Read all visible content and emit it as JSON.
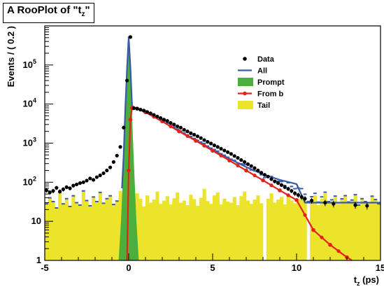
{
  "chart_data": {
    "type": "line",
    "title_prefix": "A RooPlot of \"t",
    "title_sub": "z",
    "title_suffix": "\"",
    "xlabel_main": "t",
    "xlabel_sub": "z",
    "xlabel_unit": " (ps)",
    "ylabel": "Events / ( 0.2 )",
    "xlim": [
      -5,
      15
    ],
    "ylim": [
      1,
      1000000
    ],
    "yscale": "log",
    "legend_position": "top-right",
    "x_ticks": [
      {
        "value": -5,
        "label": "-5"
      },
      {
        "value": 0,
        "label": "0"
      },
      {
        "value": 5,
        "label": "5"
      },
      {
        "value": 10,
        "label": "10"
      },
      {
        "value": 15,
        "label": "15"
      }
    ],
    "y_ticks": [
      {
        "value": 1,
        "base": "1",
        "exp": ""
      },
      {
        "value": 10,
        "base": "10",
        "exp": ""
      },
      {
        "value": 100,
        "base": "10",
        "exp": "2"
      },
      {
        "value": 1000,
        "base": "10",
        "exp": "3"
      },
      {
        "value": 10000,
        "base": "10",
        "exp": "4"
      },
      {
        "value": 100000,
        "base": "10",
        "exp": "5"
      }
    ],
    "colors": {
      "data": "#000000",
      "all": "#3a5aa8",
      "prompt": "#4caf3c",
      "from_b": "#e8201a",
      "tail": "#ebe42a"
    },
    "legend": [
      {
        "key": "data",
        "label": "Data"
      },
      {
        "key": "all",
        "label": "All"
      },
      {
        "key": "prompt",
        "label": "Prompt"
      },
      {
        "key": "from_b",
        "label": "From b"
      },
      {
        "key": "tail",
        "label": "Tail"
      }
    ],
    "series": {
      "prompt_curve": {
        "name": "Prompt",
        "x": [
          -0.6,
          -0.45,
          -0.3,
          -0.2,
          -0.1,
          0,
          0.1,
          0.2,
          0.3,
          0.45,
          0.6
        ],
        "y": [
          1,
          12,
          400,
          5000,
          80000,
          480000,
          80000,
          5000,
          400,
          12,
          1
        ]
      },
      "from_b": {
        "name": "From b",
        "x": [
          -0.1,
          0,
          0.1,
          0.2,
          0.5,
          1,
          2,
          3,
          4,
          5,
          6,
          7,
          8,
          9,
          10,
          11,
          12,
          13,
          13.3
        ],
        "y": [
          1,
          200,
          4000,
          8000,
          7700,
          6200,
          3600,
          2000,
          1150,
          640,
          360,
          200,
          112,
          62,
          35,
          6,
          2.5,
          1.2,
          1
        ]
      },
      "all_curve": {
        "x": [
          -0.4,
          -0.3,
          -0.2,
          -0.1,
          0,
          0.1,
          0.2,
          0.5,
          1,
          2,
          3,
          4,
          5,
          6,
          7,
          8,
          9,
          10,
          10.5,
          11,
          12,
          13,
          15
        ],
        "y": [
          70,
          500,
          8000,
          80000,
          520000,
          90000,
          9000,
          7600,
          6200,
          3600,
          2050,
          1180,
          680,
          400,
          245,
          160,
          115,
          90,
          30,
          30,
          30,
          30,
          30
        ]
      },
      "tail_values": [
        28,
        40,
        32,
        22,
        55,
        28,
        38,
        24,
        45,
        30,
        26,
        60,
        34,
        25,
        42,
        32,
        55,
        29,
        38,
        45,
        27,
        33,
        60,
        25,
        41,
        34,
        28,
        52,
        38,
        24,
        46,
        30,
        36,
        58,
        28,
        34,
        44,
        27,
        39,
        55,
        30,
        34,
        26,
        48,
        37,
        25,
        40,
        68,
        33,
        28,
        46,
        55,
        27,
        38,
        32,
        30,
        42,
        26,
        44,
        58,
        34,
        28,
        36,
        46,
        29,
        0,
        38,
        52,
        30,
        36,
        42,
        27,
        48,
        34,
        29,
        36,
        44,
        32,
        0,
        34,
        46,
        26,
        38,
        52,
        29,
        33,
        42,
        28,
        36,
        44,
        30,
        34,
        48,
        26,
        38,
        32,
        30,
        44,
        36,
        28
      ],
      "data_points": {
        "name": "Data",
        "x": [
          -4.9,
          -4.7,
          -4.5,
          -4.3,
          -4.1,
          -3.9,
          -3.7,
          -3.5,
          -3.3,
          -3.1,
          -2.9,
          -2.7,
          -2.5,
          -2.3,
          -2.1,
          -1.9,
          -1.7,
          -1.5,
          -1.3,
          -1.1,
          -0.9,
          -0.7,
          -0.5,
          -0.3,
          -0.1,
          0.1,
          0.3,
          0.5,
          0.7,
          0.9,
          1.1,
          1.3,
          1.5,
          1.7,
          1.9,
          2.1,
          2.3,
          2.5,
          2.7,
          2.9,
          3.1,
          3.3,
          3.5,
          3.7,
          3.9,
          4.1,
          4.3,
          4.5,
          4.7,
          4.9,
          5.1,
          5.3,
          5.5,
          5.7,
          5.9,
          6.1,
          6.3,
          6.5,
          6.7,
          6.9,
          7.1,
          7.3,
          7.5,
          7.7,
          7.9,
          8.1,
          8.3,
          8.5,
          8.7,
          8.9,
          9.1,
          9.3,
          9.5,
          9.7,
          9.9,
          10.1,
          10.3,
          10.5,
          10.9,
          11.7,
          12.2,
          13.5,
          14.2
        ],
        "y": [
          62,
          55,
          60,
          72,
          58,
          66,
          75,
          70,
          82,
          88,
          95,
          100,
          110,
          125,
          115,
          135,
          150,
          170,
          200,
          240,
          330,
          480,
          800,
          2500,
          40000,
          520000,
          7800,
          7600,
          7200,
          6800,
          6300,
          5800,
          5300,
          4800,
          4400,
          4000,
          3700,
          3300,
          3000,
          2700,
          2500,
          2200,
          2000,
          1800,
          1650,
          1500,
          1350,
          1200,
          1080,
          980,
          880,
          800,
          720,
          650,
          590,
          530,
          470,
          420,
          370,
          330,
          290,
          260,
          230,
          200,
          175,
          155,
          140,
          120,
          105,
          95,
          85,
          75,
          68,
          60,
          52,
          47,
          42,
          38,
          34,
          30,
          28,
          26,
          25
        ]
      }
    }
  }
}
